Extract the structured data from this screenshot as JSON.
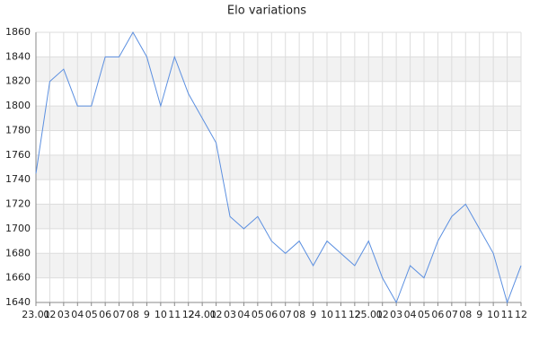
{
  "chart_data": {
    "type": "line",
    "title": "Elo variations",
    "categories": [
      "23.01",
      "02",
      "03",
      "04",
      "05",
      "06",
      "07",
      "08",
      "9",
      "10",
      "11",
      "12",
      "24.01",
      "02",
      "03",
      "04",
      "05",
      "06",
      "07",
      "08",
      "9",
      "10",
      "11",
      "12",
      "25.01",
      "02",
      "03",
      "04",
      "05",
      "06",
      "07",
      "08",
      "9",
      "10",
      "11",
      "12"
    ],
    "series": [
      {
        "color": "#5b8fe0",
        "values": [
          1745,
          1820,
          1830,
          1800,
          1800,
          1840,
          1840,
          1860,
          1840,
          1800,
          1840,
          1810,
          1790,
          1770,
          1710,
          1700,
          1710,
          1690,
          1680,
          1690,
          1670,
          1690,
          1680,
          1670,
          1690,
          1660,
          1640,
          1670,
          1660,
          1690,
          1710,
          1720,
          1700,
          1680,
          1640,
          1670
        ]
      }
    ],
    "ylim": [
      1640,
      1860
    ],
    "yticks": [
      1640,
      1660,
      1680,
      1700,
      1720,
      1740,
      1760,
      1780,
      1800,
      1820,
      1840,
      1860
    ],
    "grid": true
  }
}
